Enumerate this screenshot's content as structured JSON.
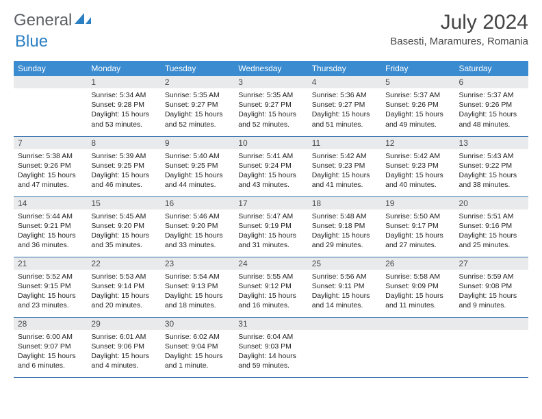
{
  "brand": {
    "word1": "General",
    "word2": "Blue"
  },
  "title": "July 2024",
  "location": "Basesti, Maramures, Romania",
  "colors": {
    "header_bg": "#3a8bd0",
    "header_text": "#ffffff",
    "daynum_bg": "#e8eaec",
    "row_border": "#2b6aa8",
    "brand_gray": "#5b5e63",
    "brand_blue": "#2b7fc3"
  },
  "day_headers": [
    "Sunday",
    "Monday",
    "Tuesday",
    "Wednesday",
    "Thursday",
    "Friday",
    "Saturday"
  ],
  "weeks": [
    [
      {
        "num": "",
        "sunrise": "",
        "sunset": "",
        "daylight": ""
      },
      {
        "num": "1",
        "sunrise": "Sunrise: 5:34 AM",
        "sunset": "Sunset: 9:28 PM",
        "daylight": "Daylight: 15 hours and 53 minutes."
      },
      {
        "num": "2",
        "sunrise": "Sunrise: 5:35 AM",
        "sunset": "Sunset: 9:27 PM",
        "daylight": "Daylight: 15 hours and 52 minutes."
      },
      {
        "num": "3",
        "sunrise": "Sunrise: 5:35 AM",
        "sunset": "Sunset: 9:27 PM",
        "daylight": "Daylight: 15 hours and 52 minutes."
      },
      {
        "num": "4",
        "sunrise": "Sunrise: 5:36 AM",
        "sunset": "Sunset: 9:27 PM",
        "daylight": "Daylight: 15 hours and 51 minutes."
      },
      {
        "num": "5",
        "sunrise": "Sunrise: 5:37 AM",
        "sunset": "Sunset: 9:26 PM",
        "daylight": "Daylight: 15 hours and 49 minutes."
      },
      {
        "num": "6",
        "sunrise": "Sunrise: 5:37 AM",
        "sunset": "Sunset: 9:26 PM",
        "daylight": "Daylight: 15 hours and 48 minutes."
      }
    ],
    [
      {
        "num": "7",
        "sunrise": "Sunrise: 5:38 AM",
        "sunset": "Sunset: 9:26 PM",
        "daylight": "Daylight: 15 hours and 47 minutes."
      },
      {
        "num": "8",
        "sunrise": "Sunrise: 5:39 AM",
        "sunset": "Sunset: 9:25 PM",
        "daylight": "Daylight: 15 hours and 46 minutes."
      },
      {
        "num": "9",
        "sunrise": "Sunrise: 5:40 AM",
        "sunset": "Sunset: 9:25 PM",
        "daylight": "Daylight: 15 hours and 44 minutes."
      },
      {
        "num": "10",
        "sunrise": "Sunrise: 5:41 AM",
        "sunset": "Sunset: 9:24 PM",
        "daylight": "Daylight: 15 hours and 43 minutes."
      },
      {
        "num": "11",
        "sunrise": "Sunrise: 5:42 AM",
        "sunset": "Sunset: 9:23 PM",
        "daylight": "Daylight: 15 hours and 41 minutes."
      },
      {
        "num": "12",
        "sunrise": "Sunrise: 5:42 AM",
        "sunset": "Sunset: 9:23 PM",
        "daylight": "Daylight: 15 hours and 40 minutes."
      },
      {
        "num": "13",
        "sunrise": "Sunrise: 5:43 AM",
        "sunset": "Sunset: 9:22 PM",
        "daylight": "Daylight: 15 hours and 38 minutes."
      }
    ],
    [
      {
        "num": "14",
        "sunrise": "Sunrise: 5:44 AM",
        "sunset": "Sunset: 9:21 PM",
        "daylight": "Daylight: 15 hours and 36 minutes."
      },
      {
        "num": "15",
        "sunrise": "Sunrise: 5:45 AM",
        "sunset": "Sunset: 9:20 PM",
        "daylight": "Daylight: 15 hours and 35 minutes."
      },
      {
        "num": "16",
        "sunrise": "Sunrise: 5:46 AM",
        "sunset": "Sunset: 9:20 PM",
        "daylight": "Daylight: 15 hours and 33 minutes."
      },
      {
        "num": "17",
        "sunrise": "Sunrise: 5:47 AM",
        "sunset": "Sunset: 9:19 PM",
        "daylight": "Daylight: 15 hours and 31 minutes."
      },
      {
        "num": "18",
        "sunrise": "Sunrise: 5:48 AM",
        "sunset": "Sunset: 9:18 PM",
        "daylight": "Daylight: 15 hours and 29 minutes."
      },
      {
        "num": "19",
        "sunrise": "Sunrise: 5:50 AM",
        "sunset": "Sunset: 9:17 PM",
        "daylight": "Daylight: 15 hours and 27 minutes."
      },
      {
        "num": "20",
        "sunrise": "Sunrise: 5:51 AM",
        "sunset": "Sunset: 9:16 PM",
        "daylight": "Daylight: 15 hours and 25 minutes."
      }
    ],
    [
      {
        "num": "21",
        "sunrise": "Sunrise: 5:52 AM",
        "sunset": "Sunset: 9:15 PM",
        "daylight": "Daylight: 15 hours and 23 minutes."
      },
      {
        "num": "22",
        "sunrise": "Sunrise: 5:53 AM",
        "sunset": "Sunset: 9:14 PM",
        "daylight": "Daylight: 15 hours and 20 minutes."
      },
      {
        "num": "23",
        "sunrise": "Sunrise: 5:54 AM",
        "sunset": "Sunset: 9:13 PM",
        "daylight": "Daylight: 15 hours and 18 minutes."
      },
      {
        "num": "24",
        "sunrise": "Sunrise: 5:55 AM",
        "sunset": "Sunset: 9:12 PM",
        "daylight": "Daylight: 15 hours and 16 minutes."
      },
      {
        "num": "25",
        "sunrise": "Sunrise: 5:56 AM",
        "sunset": "Sunset: 9:11 PM",
        "daylight": "Daylight: 15 hours and 14 minutes."
      },
      {
        "num": "26",
        "sunrise": "Sunrise: 5:58 AM",
        "sunset": "Sunset: 9:09 PM",
        "daylight": "Daylight: 15 hours and 11 minutes."
      },
      {
        "num": "27",
        "sunrise": "Sunrise: 5:59 AM",
        "sunset": "Sunset: 9:08 PM",
        "daylight": "Daylight: 15 hours and 9 minutes."
      }
    ],
    [
      {
        "num": "28",
        "sunrise": "Sunrise: 6:00 AM",
        "sunset": "Sunset: 9:07 PM",
        "daylight": "Daylight: 15 hours and 6 minutes."
      },
      {
        "num": "29",
        "sunrise": "Sunrise: 6:01 AM",
        "sunset": "Sunset: 9:06 PM",
        "daylight": "Daylight: 15 hours and 4 minutes."
      },
      {
        "num": "30",
        "sunrise": "Sunrise: 6:02 AM",
        "sunset": "Sunset: 9:04 PM",
        "daylight": "Daylight: 15 hours and 1 minute."
      },
      {
        "num": "31",
        "sunrise": "Sunrise: 6:04 AM",
        "sunset": "Sunset: 9:03 PM",
        "daylight": "Daylight: 14 hours and 59 minutes."
      },
      {
        "num": "",
        "sunrise": "",
        "sunset": "",
        "daylight": ""
      },
      {
        "num": "",
        "sunrise": "",
        "sunset": "",
        "daylight": ""
      },
      {
        "num": "",
        "sunrise": "",
        "sunset": "",
        "daylight": ""
      }
    ]
  ]
}
